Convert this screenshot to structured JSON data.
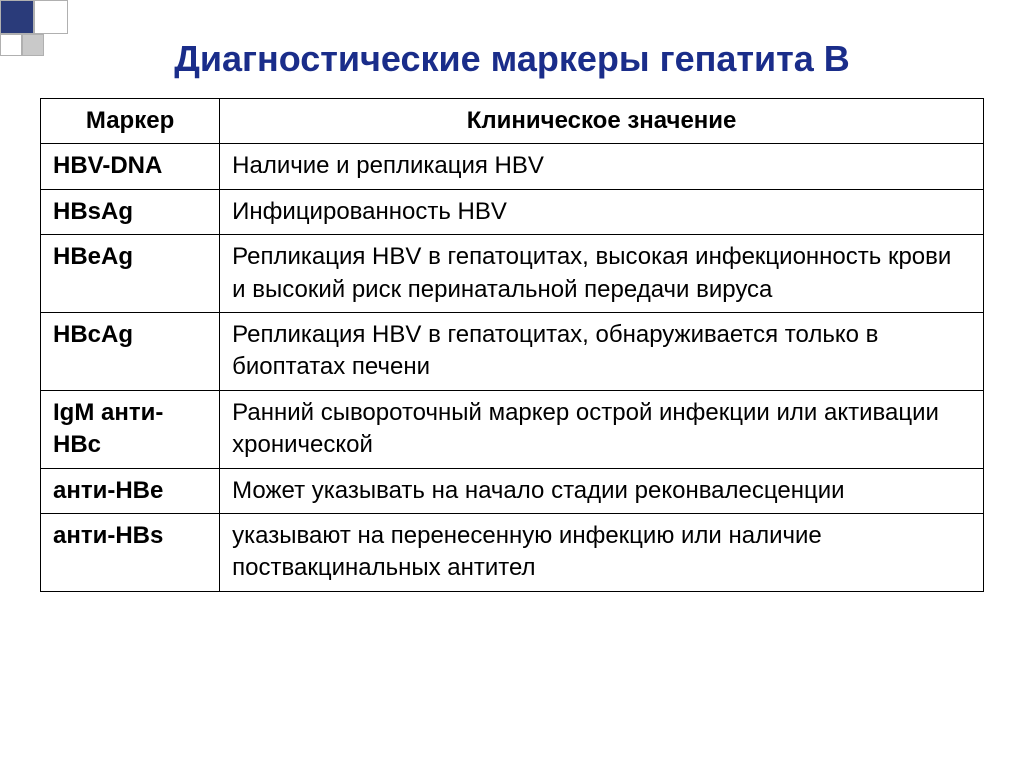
{
  "slide": {
    "title": "Диагностические маркеры гепатита В",
    "title_color": "#1a2d8a",
    "title_fontsize": 36
  },
  "table": {
    "border_color": "#000000",
    "cell_fontsize": 24,
    "header_fontsize": 24,
    "text_color": "#000000",
    "columns": [
      "Маркер",
      "Клиническое значение"
    ],
    "rows": [
      {
        "marker": "HBV-DNA",
        "meaning": "Наличие и репликация HBV"
      },
      {
        "marker": "HBsAg",
        "meaning": "Инфицированность HBV"
      },
      {
        "marker": "HBeAg",
        "meaning": "Репликация HBV в гепатоцитах, высокая инфекционность крови и высокий риск перинатальной передачи вируса"
      },
      {
        "marker": "HBcAg",
        "meaning": "Репликация HBV в гепатоцитах, обнаруживается только в биоптатах печени"
      },
      {
        "marker": "IgM анти-HBc",
        "meaning": "Ранний сывороточный маркер острой инфекции или активации хронической"
      },
      {
        "marker": "анти-HBe",
        "meaning": "Может указывать на начало стадии реконвалесценции"
      },
      {
        "marker": "анти-HBs",
        "meaning": "указывают на перенесенную инфекцию или наличие поствакцинальных антител"
      }
    ]
  },
  "decoration": {
    "pattern": [
      [
        {
          "size": 34,
          "fill": "#2a3b7a"
        },
        {
          "size": 34,
          "fill": "#ffffff"
        }
      ],
      [
        {
          "size": 22,
          "fill": "#ffffff"
        },
        {
          "size": 22,
          "fill": "#c9c9c9"
        }
      ]
    ]
  }
}
